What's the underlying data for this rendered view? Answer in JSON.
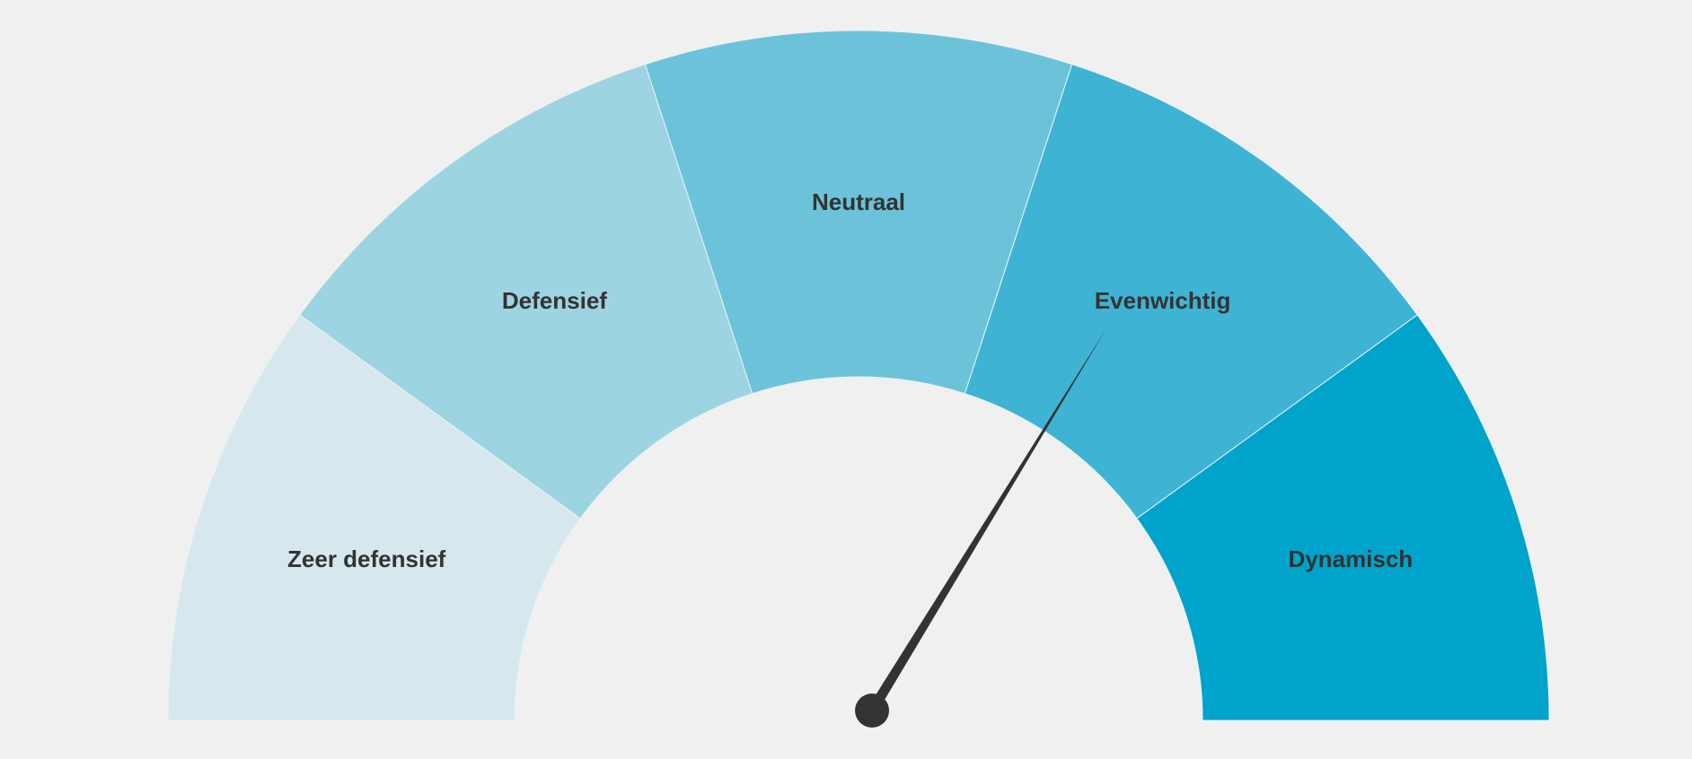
{
  "segments": [
    {
      "label": "Zeer defensief",
      "color": "#d6e7ed"
    },
    {
      "label": "Defensief",
      "color": "#9dd4e2"
    },
    {
      "label": "Neutraal",
      "color": "#6cc3d9"
    },
    {
      "label": "Evenwichtig",
      "color": "#3eb3d4"
    },
    {
      "label": "Dynamisch",
      "color": "#00a3c9"
    }
  ]
}
